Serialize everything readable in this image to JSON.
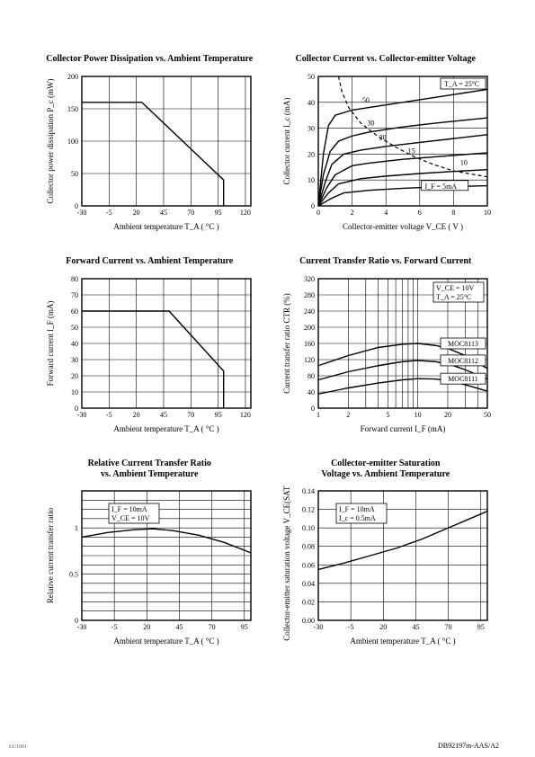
{
  "page": {
    "footer_right": "DB92197m-AAS/A2",
    "footer_left": "LU1001"
  },
  "charts": {
    "c1": {
      "title": "Collector Power Dissipation vs. Ambient Temperature",
      "xlabel": "Ambient temperature T_A ( °C )",
      "ylabel": "Collector power dissipation P_c (mW)",
      "xlim": [
        -30,
        125
      ],
      "xtick_step": 25,
      "xtick_minor_start": -30,
      "ylim": [
        0,
        200
      ],
      "ytick_step": 50,
      "curve": [
        [
          -30,
          160
        ],
        [
          25,
          160
        ],
        [
          100,
          40
        ],
        [
          100,
          0
        ]
      ]
    },
    "c2": {
      "title": "Collector Current vs. Collector-emitter Voltage",
      "xlabel": "Collector-emitter voltage V_CE ( V )",
      "ylabel": "Collector current I_c (mA)",
      "xlim": [
        0,
        10
      ],
      "xtick_step": 2,
      "ylim": [
        0,
        50
      ],
      "ytick_step": 10,
      "conditions": "T_A = 25°C",
      "curves": [
        {
          "label": "50",
          "pts": [
            [
              0,
              0
            ],
            [
              0.3,
              20
            ],
            [
              0.6,
              31
            ],
            [
              1,
              35
            ],
            [
              2,
              37
            ],
            [
              3,
              38
            ],
            [
              4,
              39
            ],
            [
              6,
              41
            ],
            [
              8,
              43
            ],
            [
              10,
              45
            ]
          ]
        },
        {
          "label": "30",
          "pts": [
            [
              0,
              0
            ],
            [
              0.3,
              12
            ],
            [
              0.7,
              21
            ],
            [
              1.2,
              25
            ],
            [
              2,
              27
            ],
            [
              3,
              28.5
            ],
            [
              5,
              30.5
            ],
            [
              7,
              32
            ],
            [
              10,
              34
            ]
          ]
        },
        {
          "label": "20",
          "pts": [
            [
              0,
              0
            ],
            [
              0.4,
              9
            ],
            [
              0.8,
              16
            ],
            [
              1.5,
              20
            ],
            [
              2.5,
              21.5
            ],
            [
              4,
              23
            ],
            [
              6,
              24.5
            ],
            [
              8,
              26
            ],
            [
              10,
              27.5
            ]
          ]
        },
        {
          "label": "15",
          "pts": [
            [
              0,
              0
            ],
            [
              0.5,
              7
            ],
            [
              1,
              12
            ],
            [
              2,
              15.5
            ],
            [
              3,
              16.5
            ],
            [
              5,
              18
            ],
            [
              7,
              19
            ],
            [
              10,
              20.5
            ]
          ]
        },
        {
          "label": "10",
          "pts": [
            [
              0,
              0
            ],
            [
              0.6,
              5
            ],
            [
              1.2,
              8.5
            ],
            [
              2.5,
              10.5
            ],
            [
              4,
              11.5
            ],
            [
              6,
              12.5
            ],
            [
              8,
              13.3
            ],
            [
              10,
              14
            ]
          ]
        },
        {
          "label": "I_F = 5mA",
          "pts": [
            [
              0,
              0
            ],
            [
              0.8,
              3
            ],
            [
              1.5,
              5
            ],
            [
              3,
              6
            ],
            [
              5,
              6.8
            ],
            [
              7,
              7.3
            ],
            [
              10,
              7.8
            ]
          ]
        }
      ],
      "dashed": [
        [
          1.2,
          50
        ],
        [
          1.4,
          44
        ],
        [
          1.8,
          38
        ],
        [
          2.5,
          32
        ],
        [
          3.5,
          27
        ],
        [
          4.5,
          23
        ],
        [
          5.5,
          19.5
        ],
        [
          6.8,
          16
        ],
        [
          8,
          13.5
        ],
        [
          10,
          11.2
        ]
      ]
    },
    "c3": {
      "title": "Forward Current vs. Ambient Temperature",
      "xlabel": "Ambient temperature T_A ( °C )",
      "ylabel": "Forward current I_F (mA)",
      "xlim": [
        -30,
        125
      ],
      "xtick_step": 25,
      "xtick_minor_start": -30,
      "ylim": [
        0,
        80
      ],
      "ytick_step": 10,
      "curve": [
        [
          -30,
          60
        ],
        [
          50,
          60
        ],
        [
          100,
          23
        ],
        [
          100,
          0
        ]
      ]
    },
    "c4": {
      "title": "Current Transfer Ratio vs. Forward Current",
      "xlabel": "Forward current I_F (mA)",
      "ylabel": "Current transfer ratio CTR (%)",
      "xlim_log": [
        1,
        50
      ],
      "ylim": [
        0,
        320
      ],
      "ytick_step": 40,
      "conditions": [
        "V_CE = 10V",
        "T_A = 25°C"
      ],
      "curves": [
        {
          "label": "MOC8113",
          "pts": [
            [
              1,
              105
            ],
            [
              2,
              130
            ],
            [
              4,
              150
            ],
            [
              7,
              158
            ],
            [
              10,
              160
            ],
            [
              15,
              155
            ],
            [
              20,
              148
            ],
            [
              30,
              130
            ],
            [
              50,
              98
            ]
          ]
        },
        {
          "label": "MOC8112",
          "pts": [
            [
              1,
              70
            ],
            [
              2,
              90
            ],
            [
              4,
              105
            ],
            [
              7,
              115
            ],
            [
              10,
              118
            ],
            [
              15,
              115
            ],
            [
              20,
              110
            ],
            [
              30,
              95
            ],
            [
              50,
              72
            ]
          ]
        },
        {
          "label": "MOC8111",
          "pts": [
            [
              1,
              35
            ],
            [
              2,
              50
            ],
            [
              4,
              62
            ],
            [
              7,
              70
            ],
            [
              10,
              73
            ],
            [
              15,
              72
            ],
            [
              20,
              68
            ],
            [
              30,
              58
            ],
            [
              50,
              42
            ]
          ]
        }
      ]
    },
    "c5": {
      "title_l1": "Relative Current Transfer Ratio",
      "title_l2": "vs. Ambient Temperature",
      "xlabel": "Ambient temperature T_A ( °C )",
      "ylabel": "Relative current transfer ratio",
      "xlim": [
        -30,
        100
      ],
      "xtick_step": 25,
      "xtick_minor_start": -30,
      "ylim": [
        0,
        1.4
      ],
      "yticks": [
        0,
        0.5,
        1,
        1.5
      ],
      "yticks_minor": [
        0,
        0.1,
        0.2,
        0.3,
        0.4,
        0.5,
        0.6,
        0.7,
        0.8,
        0.9,
        1.0,
        1.1,
        1.2,
        1.3,
        1.4
      ],
      "conditions": [
        "I_F = 10mA",
        "V_CE = 10V"
      ],
      "curve": [
        [
          -30,
          0.9
        ],
        [
          -10,
          0.95
        ],
        [
          10,
          0.98
        ],
        [
          25,
          0.99
        ],
        [
          40,
          0.97
        ],
        [
          60,
          0.92
        ],
        [
          80,
          0.84
        ],
        [
          100,
          0.73
        ]
      ]
    },
    "c6": {
      "title_l1": "Collector-emitter Saturation",
      "title_l2": "Voltage vs. Ambient Temperature",
      "xlabel": "Ambient temperature T_A ( °C )",
      "ylabel": "Collector-emitter saturation voltage V_CE(SAT) (V)",
      "xlim": [
        -30,
        100
      ],
      "xtick_step": 25,
      "xtick_minor_start": -30,
      "ylim": [
        0,
        0.14
      ],
      "ytick_step": 0.02,
      "conditions": [
        "I_F = 10mA",
        "I_c = 0.5mA"
      ],
      "curve": [
        [
          -30,
          0.055
        ],
        [
          -10,
          0.062
        ],
        [
          10,
          0.07
        ],
        [
          30,
          0.078
        ],
        [
          50,
          0.088
        ],
        [
          70,
          0.1
        ],
        [
          90,
          0.112
        ],
        [
          100,
          0.118
        ]
      ]
    }
  }
}
